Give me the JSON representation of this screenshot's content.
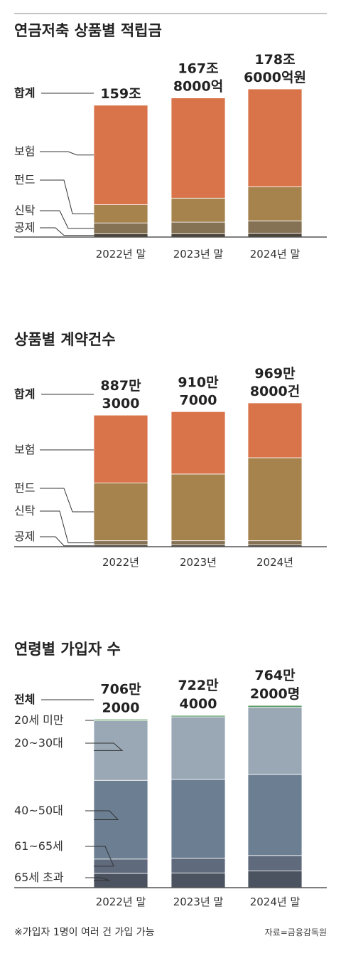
{
  "footer": {
    "note": "※가입자 1명이 여러 건 가입 가능",
    "source": "자료=금융감독원"
  },
  "chart_data": [
    {
      "type": "bar",
      "stacked": true,
      "title": "연금저축 상품별 적립금",
      "categories": [
        "2022년 말",
        "2023년 말",
        "2024년 말"
      ],
      "total_label": "합계",
      "totals": [
        159,
        167.8,
        178.6
      ],
      "total_text": [
        [
          "159조"
        ],
        [
          "167조",
          "8000억"
        ],
        [
          "178조",
          "6000억원"
        ]
      ],
      "series": [
        {
          "name": "공제",
          "values": [
            4,
            4,
            4.5
          ],
          "color": "#4a4338"
        },
        {
          "name": "신탁",
          "values": [
            13,
            14,
            15
          ],
          "color": "#857153"
        },
        {
          "name": "펀드",
          "values": [
            22,
            29,
            41
          ],
          "color": "#a6824d"
        },
        {
          "name": "보험",
          "values": [
            120,
            120.8,
            118.1
          ],
          "color": "#d9734a"
        }
      ],
      "ylim": [
        0,
        178.6
      ]
    },
    {
      "type": "bar",
      "stacked": true,
      "title": "상품별 계약건수",
      "categories": [
        "2022년",
        "2023년",
        "2024년"
      ],
      "total_label": "합계",
      "totals": [
        887.3,
        910.7,
        969.8
      ],
      "total_text": [
        [
          "887만",
          "3000"
        ],
        [
          "910만",
          "7000"
        ],
        [
          "969만",
          "8000건"
        ]
      ],
      "series": [
        {
          "name": "공제",
          "values": [
            12,
            12,
            12
          ],
          "color": "#4a4338"
        },
        {
          "name": "신탁",
          "values": [
            28,
            28,
            28
          ],
          "color": "#857153"
        },
        {
          "name": "펀드",
          "values": [
            390,
            450,
            560
          ],
          "color": "#a6824d"
        },
        {
          "name": "보험",
          "values": [
            457.3,
            420.7,
            369.8
          ],
          "color": "#d9734a"
        }
      ],
      "ylim": [
        0,
        969.8
      ]
    },
    {
      "type": "bar",
      "stacked": true,
      "title": "연령별 가입자 수",
      "categories": [
        "2022년 말",
        "2023년 말",
        "2024년 말"
      ],
      "total_label": "전체",
      "totals": [
        706.2,
        722.4,
        764.2
      ],
      "total_text": [
        [
          "706만",
          "2000"
        ],
        [
          "722만",
          "4000"
        ],
        [
          "764만",
          "2000명"
        ]
      ],
      "series": [
        {
          "name": "65세 초과",
          "values": [
            60,
            62,
            70
          ],
          "color": "#4c5360"
        },
        {
          "name": "61~65세",
          "values": [
            60,
            62,
            65
          ],
          "color": "#606a7d"
        },
        {
          "name": "40~50대",
          "values": [
            330,
            330,
            340
          ],
          "color": "#6b7e92"
        },
        {
          "name": "20~30대",
          "values": [
            250,
            262,
            281
          ],
          "color": "#9aa8b6"
        },
        {
          "name": "20세 미만",
          "values": [
            6.2,
            6.4,
            8.2
          ],
          "color": "#5e9c6a"
        }
      ],
      "ylim": [
        0,
        764.2
      ]
    }
  ]
}
